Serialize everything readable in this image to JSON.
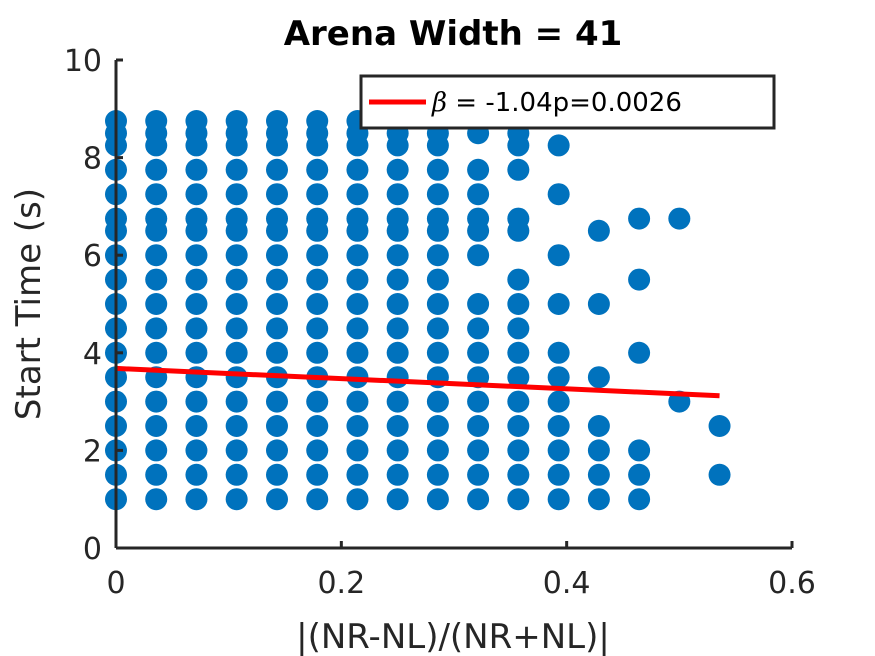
{
  "chart_data": {
    "type": "scatter",
    "title": "Arena Width =  41",
    "xlabel": "|(NR-NL)/(NR+NL)|",
    "ylabel": "Start Time (s)",
    "xlim": [
      0,
      0.6
    ],
    "ylim": [
      0,
      10
    ],
    "xticks": [
      0,
      0.2,
      0.4,
      0.6
    ],
    "xtick_labels": [
      "0",
      "0.2",
      "0.4",
      "0.6"
    ],
    "yticks": [
      0,
      2,
      4,
      6,
      8,
      10
    ],
    "ytick_labels": [
      "0",
      "2",
      "4",
      "6",
      "8",
      "10"
    ],
    "grid": false,
    "legend_position": "top-right",
    "colors": {
      "points": "#0072BD",
      "fit": "#FF0000",
      "axes": "#262626"
    },
    "series": [
      {
        "kind": "scatter",
        "columns": [
          {
            "x": 0.0,
            "y": [
              1,
              1.5,
              2,
              2.5,
              3,
              3.5,
              4,
              4.5,
              5,
              5.5,
              6,
              6.5,
              6.75,
              7.25,
              7.75,
              8.25,
              8.5,
              8.75
            ]
          },
          {
            "x": 0.0357,
            "y": [
              1,
              1.5,
              2,
              2.5,
              3,
              3.5,
              4,
              4.5,
              5,
              5.5,
              6,
              6.5,
              6.75,
              7.25,
              7.75,
              8.25,
              8.5,
              8.75
            ]
          },
          {
            "x": 0.0714,
            "y": [
              1,
              1.5,
              2,
              2.5,
              3,
              3.5,
              4,
              4.5,
              5,
              5.5,
              6,
              6.5,
              6.75,
              7.25,
              7.75,
              8.25,
              8.5,
              8.75
            ]
          },
          {
            "x": 0.1071,
            "y": [
              1,
              1.5,
              2,
              2.5,
              3,
              3.5,
              4,
              4.5,
              5,
              5.5,
              6,
              6.5,
              6.75,
              7.25,
              7.75,
              8.25,
              8.5,
              8.75
            ]
          },
          {
            "x": 0.1429,
            "y": [
              1,
              1.5,
              2,
              2.5,
              3,
              3.5,
              4,
              4.5,
              5,
              5.5,
              6,
              6.5,
              6.75,
              7.25,
              7.75,
              8.25,
              8.5,
              8.75
            ]
          },
          {
            "x": 0.1786,
            "y": [
              1,
              1.5,
              2,
              2.5,
              3,
              3.5,
              4,
              4.5,
              5,
              5.5,
              6,
              6.5,
              6.75,
              7.25,
              7.75,
              8.25,
              8.5,
              8.75
            ]
          },
          {
            "x": 0.2143,
            "y": [
              1,
              1.5,
              2,
              2.5,
              3,
              3.5,
              4,
              4.5,
              5,
              5.5,
              6,
              6.5,
              6.75,
              7.25,
              7.75,
              8.25,
              8.5,
              8.75
            ]
          },
          {
            "x": 0.25,
            "y": [
              1,
              1.5,
              2,
              2.5,
              3,
              3.5,
              4,
              4.5,
              5,
              5.5,
              6,
              6.5,
              6.75,
              7.25,
              7.75,
              8.25,
              8.5
            ]
          },
          {
            "x": 0.2857,
            "y": [
              1,
              1.5,
              2,
              2.5,
              3,
              3.5,
              4,
              4.5,
              5,
              5.5,
              6,
              6.5,
              6.75,
              7.25,
              7.75,
              8.25,
              8.5
            ]
          },
          {
            "x": 0.3214,
            "y": [
              1,
              1.5,
              2,
              2.5,
              3,
              3.5,
              4,
              4.5,
              5,
              6,
              6.5,
              6.75,
              7.25,
              7.75,
              8.5
            ]
          },
          {
            "x": 0.3571,
            "y": [
              1,
              1.5,
              2,
              2.5,
              3,
              3.5,
              4,
              4.5,
              5,
              5.5,
              6.5,
              6.75,
              7.75,
              8.25,
              8.5
            ]
          },
          {
            "x": 0.3929,
            "y": [
              1,
              1.5,
              2,
              2.5,
              3,
              3.5,
              4,
              5,
              6,
              7.25,
              8.25
            ]
          },
          {
            "x": 0.4286,
            "y": [
              1,
              1.5,
              2,
              2.5,
              3.5,
              5,
              6.5
            ]
          },
          {
            "x": 0.4643,
            "y": [
              1,
              1.5,
              2,
              4,
              5.5,
              6.75
            ]
          },
          {
            "x": 0.5,
            "y": [
              3,
              6.75
            ]
          },
          {
            "x": 0.5357,
            "y": [
              1.5,
              2.5
            ]
          }
        ]
      },
      {
        "kind": "line",
        "x": [
          0,
          0.5357
        ],
        "y": [
          3.68,
          3.12
        ]
      }
    ],
    "legend": {
      "beta_symbol": "β",
      "label": " =  -1.04p=0.0026"
    }
  }
}
